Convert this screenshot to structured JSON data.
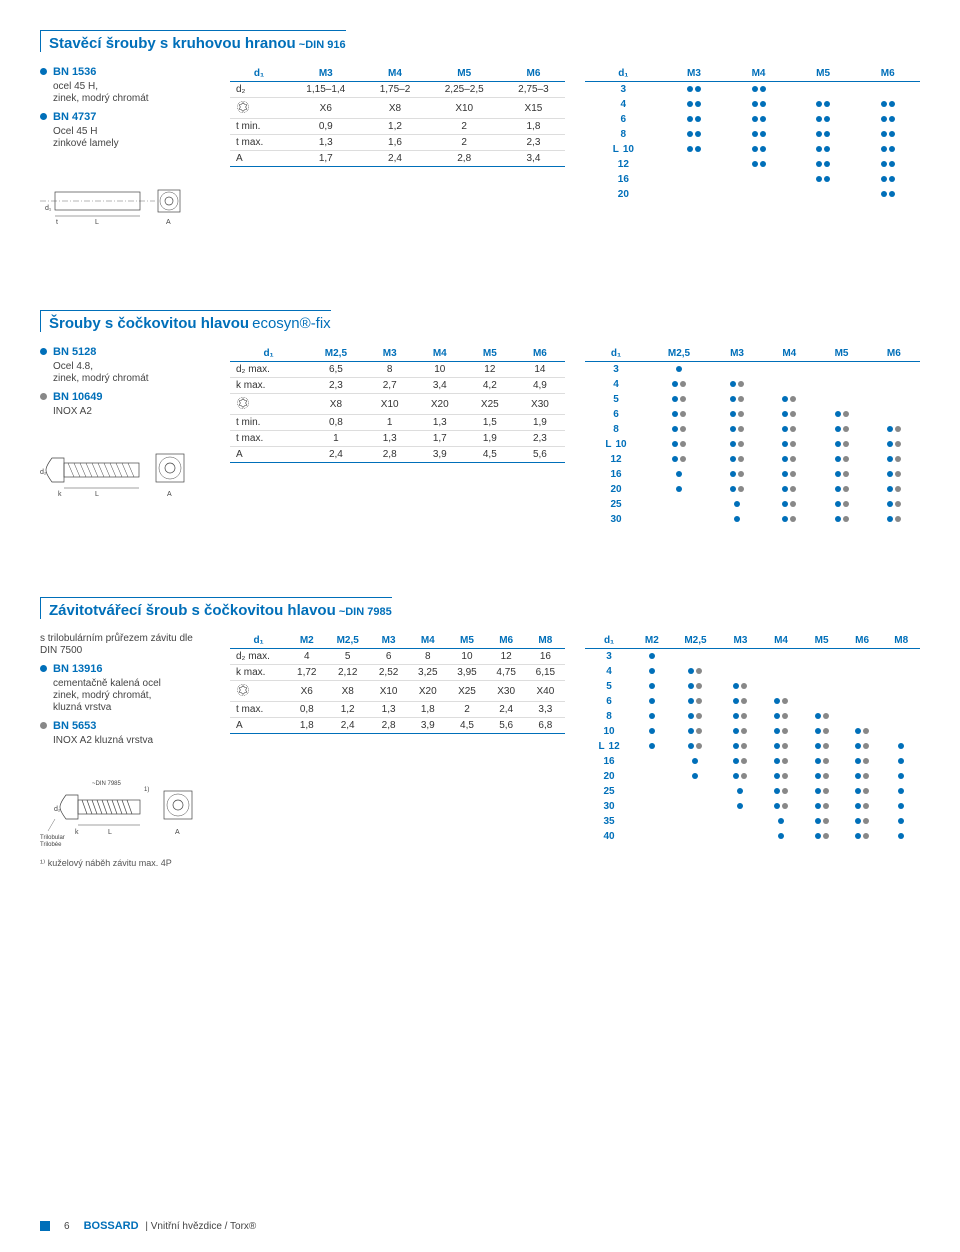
{
  "footer": {
    "page": "6",
    "brand": "BOSSARD",
    "title": "Vnitřní hvězdice / Torx®"
  },
  "sec1": {
    "title": "Stavěcí šrouby s kruhovou hranou",
    "din": "~DIN 916",
    "items": [
      {
        "code": "BN 1536",
        "desc": "ocel 45 H,\nzinek, modrý chromát"
      },
      {
        "code": "BN 4737",
        "desc": "Ocel 45 H\nzinkové lamely"
      }
    ],
    "spec": {
      "head": [
        "d₁",
        "M3",
        "M4",
        "M5",
        "M6"
      ],
      "rows": [
        [
          "d₂",
          "1,15–1,4",
          "1,75–2",
          "2,25–2,5",
          "2,75–3"
        ],
        [
          "⌖",
          "X6",
          "X8",
          "X10",
          "X15"
        ],
        [
          "t min.",
          "0,9",
          "1,2",
          "2",
          "1,8"
        ],
        [
          "t max.",
          "1,3",
          "1,6",
          "2",
          "2,3"
        ],
        [
          "A",
          "1,7",
          "2,4",
          "2,8",
          "3,4"
        ]
      ]
    },
    "avail": {
      "head": [
        "d₁",
        "M3",
        "M4",
        "M5",
        "M6"
      ],
      "L_rows": [
        "3",
        "4",
        "6",
        "8",
        "10",
        "12",
        "16",
        "20"
      ],
      "dots": {
        "3": [
          [
            1,
            1
          ],
          [
            1,
            1
          ],
          [],
          []
        ],
        "4": [
          [
            1,
            1
          ],
          [
            1,
            1
          ],
          [
            1,
            1
          ],
          [
            1,
            1
          ]
        ],
        "6": [
          [
            1,
            1
          ],
          [
            1,
            1
          ],
          [
            1,
            1
          ],
          [
            1,
            1
          ]
        ],
        "8": [
          [
            1,
            1
          ],
          [
            1,
            1
          ],
          [
            1,
            1
          ],
          [
            1,
            1
          ]
        ],
        "10": [
          [
            1,
            1
          ],
          [
            1,
            1
          ],
          [
            1,
            1
          ],
          [
            1,
            1
          ]
        ],
        "12": [
          [],
          [
            1,
            1
          ],
          [
            1,
            1
          ],
          [
            1,
            1
          ]
        ],
        "16": [
          [],
          [],
          [
            1,
            1
          ],
          [
            1,
            1
          ]
        ],
        "20": [
          [],
          [],
          [],
          [
            1,
            1
          ]
        ]
      }
    }
  },
  "sec2": {
    "title": "Šrouby s čočkovitou hlavou",
    "sub": "ecosyn®-fix",
    "items": [
      {
        "code": "BN 5128",
        "desc": "Ocel 4.8,\nzinek, modrý chromát"
      },
      {
        "code": "BN 10649",
        "desc": "INOX A2",
        "grey": true
      }
    ],
    "spec": {
      "head": [
        "d₁",
        "M2,5",
        "M3",
        "M4",
        "M5",
        "M6"
      ],
      "rows": [
        [
          "d₂ max.",
          "6,5",
          "8",
          "10",
          "12",
          "14"
        ],
        [
          "k max.",
          "2,3",
          "2,7",
          "3,4",
          "4,2",
          "4,9"
        ],
        [
          "⌖",
          "X8",
          "X10",
          "X20",
          "X25",
          "X30"
        ],
        [
          "t min.",
          "0,8",
          "1",
          "1,3",
          "1,5",
          "1,9"
        ],
        [
          "t max.",
          "1",
          "1,3",
          "1,7",
          "1,9",
          "2,3"
        ],
        [
          "A",
          "2,4",
          "2,8",
          "3,9",
          "4,5",
          "5,6"
        ]
      ]
    },
    "avail": {
      "head": [
        "d₁",
        "M2,5",
        "M3",
        "M4",
        "M5",
        "M6"
      ],
      "L_rows": [
        "3",
        "4",
        "5",
        "6",
        "8",
        "10",
        "12",
        "16",
        "20",
        "25",
        "30"
      ],
      "dots": {
        "3": [
          [
            1
          ],
          [],
          [],
          [],
          []
        ],
        "4": [
          [
            1,
            2
          ],
          [
            1,
            2
          ],
          [],
          [],
          []
        ],
        "5": [
          [
            1,
            2
          ],
          [
            1,
            2
          ],
          [
            1,
            2
          ],
          [],
          []
        ],
        "6": [
          [
            1,
            2
          ],
          [
            1,
            2
          ],
          [
            1,
            2
          ],
          [
            1,
            2
          ],
          []
        ],
        "8": [
          [
            1,
            2
          ],
          [
            1,
            2
          ],
          [
            1,
            2
          ],
          [
            1,
            2
          ],
          [
            1,
            2
          ]
        ],
        "10": [
          [
            1,
            2
          ],
          [
            1,
            2
          ],
          [
            1,
            2
          ],
          [
            1,
            2
          ],
          [
            1,
            2
          ]
        ],
        "12": [
          [
            1,
            2
          ],
          [
            1,
            2
          ],
          [
            1,
            2
          ],
          [
            1,
            2
          ],
          [
            1,
            2
          ]
        ],
        "16": [
          [
            1
          ],
          [
            1,
            2
          ],
          [
            1,
            2
          ],
          [
            1,
            2
          ],
          [
            1,
            2
          ]
        ],
        "20": [
          [
            1
          ],
          [
            1,
            2
          ],
          [
            1,
            2
          ],
          [
            1,
            2
          ],
          [
            1,
            2
          ]
        ],
        "25": [
          [],
          [
            1
          ],
          [
            1,
            2
          ],
          [
            1,
            2
          ],
          [
            1,
            2
          ]
        ],
        "30": [
          [],
          [
            1
          ],
          [
            1,
            2
          ],
          [
            1,
            2
          ],
          [
            1,
            2
          ]
        ]
      }
    }
  },
  "sec3": {
    "title": "Závitotvářecí šroub s čočkovitou  hlavou",
    "din": "~DIN 7985",
    "intro": "s trilobulárním průřezem\nzávitu dle DIN 7500",
    "items": [
      {
        "code": "BN 13916",
        "desc": "cementačně kalená ocel\nzinek, modrý chromát,\nkluzná vrstva"
      },
      {
        "code": "BN 5653",
        "desc": "INOX A2  kluzná vrstva",
        "grey": true
      }
    ],
    "note": "¹⁾ kuželový náběh závitu max. 4P",
    "diag_labels": {
      "din": "~DIN 7985",
      "tri": "Trilobular\nTrilobée",
      "one": "1)"
    },
    "spec": {
      "head": [
        "d₁",
        "M2",
        "M2,5",
        "M3",
        "M4",
        "M5",
        "M6",
        "M8"
      ],
      "rows": [
        [
          "d₂ max.",
          "4",
          "5",
          "6",
          "8",
          "10",
          "12",
          "16"
        ],
        [
          "k max.",
          "1,72",
          "2,12",
          "2,52",
          "3,25",
          "3,95",
          "4,75",
          "6,15"
        ],
        [
          "⌖",
          "X6",
          "X8",
          "X10",
          "X20",
          "X25",
          "X30",
          "X40"
        ],
        [
          "t max.",
          "0,8",
          "1,2",
          "1,3",
          "1,8",
          "2",
          "2,4",
          "3,3"
        ],
        [
          "A",
          "1,8",
          "2,4",
          "2,8",
          "3,9",
          "4,5",
          "5,6",
          "6,8"
        ]
      ]
    },
    "avail": {
      "head": [
        "d₁",
        "M2",
        "M2,5",
        "M3",
        "M4",
        "M5",
        "M6",
        "M8"
      ],
      "L_rows": [
        "3",
        "4",
        "5",
        "6",
        "8",
        "10",
        "12",
        "16",
        "20",
        "25",
        "30",
        "35",
        "40"
      ],
      "dots": {
        "3": [
          [
            1
          ],
          [],
          [],
          [],
          [],
          [],
          []
        ],
        "4": [
          [
            1
          ],
          [
            1,
            2
          ],
          [],
          [],
          [],
          [],
          []
        ],
        "5": [
          [
            1
          ],
          [
            1,
            2
          ],
          [
            1,
            2
          ],
          [],
          [],
          [],
          []
        ],
        "6": [
          [
            1
          ],
          [
            1,
            2
          ],
          [
            1,
            2
          ],
          [
            1,
            2
          ],
          [],
          [],
          []
        ],
        "8": [
          [
            1
          ],
          [
            1,
            2
          ],
          [
            1,
            2
          ],
          [
            1,
            2
          ],
          [
            1,
            2
          ],
          [],
          []
        ],
        "10": [
          [
            1
          ],
          [
            1,
            2
          ],
          [
            1,
            2
          ],
          [
            1,
            2
          ],
          [
            1,
            2
          ],
          [
            1,
            2
          ],
          []
        ],
        "12": [
          [
            1
          ],
          [
            1,
            2
          ],
          [
            1,
            2
          ],
          [
            1,
            2
          ],
          [
            1,
            2
          ],
          [
            1,
            2
          ],
          [
            1
          ]
        ],
        "16": [
          [],
          [
            1
          ],
          [
            1,
            2
          ],
          [
            1,
            2
          ],
          [
            1,
            2
          ],
          [
            1,
            2
          ],
          [
            1
          ]
        ],
        "20": [
          [],
          [
            1
          ],
          [
            1,
            2
          ],
          [
            1,
            2
          ],
          [
            1,
            2
          ],
          [
            1,
            2
          ],
          [
            1
          ]
        ],
        "25": [
          [],
          [],
          [
            1
          ],
          [
            1,
            2
          ],
          [
            1,
            2
          ],
          [
            1,
            2
          ],
          [
            1
          ]
        ],
        "30": [
          [],
          [],
          [
            1
          ],
          [
            1,
            2
          ],
          [
            1,
            2
          ],
          [
            1,
            2
          ],
          [
            1
          ]
        ],
        "35": [
          [],
          [],
          [],
          [
            1
          ],
          [
            1,
            2
          ],
          [
            1,
            2
          ],
          [
            1
          ]
        ],
        "40": [
          [],
          [],
          [],
          [
            1
          ],
          [
            1,
            2
          ],
          [
            1,
            2
          ],
          [
            1
          ]
        ]
      }
    }
  }
}
